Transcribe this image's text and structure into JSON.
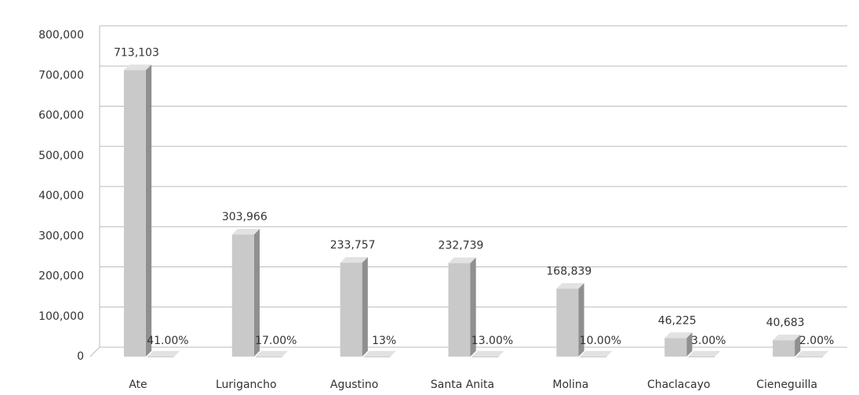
{
  "chart_data": {
    "type": "bar",
    "categories": [
      "Ate",
      "Lurigancho",
      "Agustino",
      "Santa Anita",
      "Molina",
      "Chaclacayo",
      "Cieneguilla"
    ],
    "series": [
      {
        "color": "#c9c9c9",
        "values": [
          713103,
          303966,
          233757,
          232739,
          168839,
          46225,
          40683
        ],
        "value_labels": [
          "713,103",
          "303,966",
          "233,757",
          "232,739",
          "168,839",
          "46,225",
          "40,683"
        ]
      },
      {
        "color": "#9a9a9a",
        "values": [
          41,
          17,
          13,
          13,
          10,
          3,
          2
        ],
        "value_labels": [
          "41.00%",
          "17.00%",
          "13%",
          "13.00%",
          "10.00%",
          "3.00%",
          "2.00%"
        ]
      }
    ],
    "ylim": [
      0,
      800000
    ],
    "yticks": [
      0,
      {
        "value": 100000,
        "label": "100,000"
      },
      {
        "value": 200000,
        "label": "200,000"
      },
      {
        "value": 300000,
        "label": "300,000"
      },
      {
        "value": 400000,
        "label": "400,000"
      },
      {
        "value": 500000,
        "label": "500,000"
      },
      {
        "value": 600000,
        "label": "600,000"
      },
      {
        "value": 700000,
        "label": "700,000"
      },
      {
        "value": 800000,
        "label": "800,000"
      }
    ],
    "grid": true
  }
}
